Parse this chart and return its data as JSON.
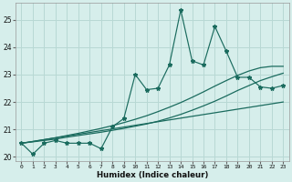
{
  "xlabel": "Humidex (Indice chaleur)",
  "ylabel": "",
  "background_color": "#d6eeeb",
  "grid_color": "#b8d8d4",
  "line_color": "#1a6b5e",
  "xlim": [
    -0.5,
    23.5
  ],
  "ylim": [
    19.85,
    25.6
  ],
  "yticks": [
    20,
    21,
    22,
    23,
    24,
    25
  ],
  "xticks": [
    0,
    1,
    2,
    3,
    4,
    5,
    6,
    7,
    8,
    9,
    10,
    11,
    12,
    13,
    14,
    15,
    16,
    17,
    18,
    19,
    20,
    21,
    22,
    23
  ],
  "series_jagged_x": [
    0,
    1,
    2,
    3,
    4,
    5,
    6,
    7,
    8,
    9,
    10,
    11,
    12,
    13,
    14,
    15,
    16,
    17,
    18,
    19,
    20,
    21,
    22,
    23
  ],
  "series_jagged_y": [
    20.5,
    20.1,
    20.5,
    20.6,
    20.5,
    20.5,
    20.5,
    20.3,
    21.1,
    21.4,
    23.0,
    22.45,
    22.5,
    23.35,
    25.35,
    23.5,
    23.35,
    24.75,
    23.85,
    22.9,
    22.9,
    22.55,
    22.5,
    22.6
  ],
  "series_line1_x": [
    0,
    1,
    2,
    3,
    4,
    5,
    6,
    7,
    8,
    9,
    10,
    11,
    12,
    13,
    14,
    15,
    16,
    17,
    18,
    19,
    20,
    21,
    22,
    23
  ],
  "series_line1_y": [
    20.5,
    20.55,
    20.6,
    20.65,
    20.72,
    20.78,
    20.84,
    20.9,
    20.97,
    21.04,
    21.12,
    21.2,
    21.3,
    21.42,
    21.55,
    21.7,
    21.86,
    22.03,
    22.22,
    22.42,
    22.6,
    22.78,
    22.92,
    23.05
  ],
  "series_line2_x": [
    0,
    1,
    2,
    3,
    4,
    5,
    6,
    7,
    8,
    9,
    10,
    11,
    12,
    13,
    14,
    15,
    16,
    17,
    18,
    19,
    20,
    21,
    22,
    23
  ],
  "series_line2_y": [
    20.5,
    20.56,
    20.63,
    20.7,
    20.78,
    20.86,
    20.95,
    21.04,
    21.14,
    21.25,
    21.37,
    21.5,
    21.65,
    21.81,
    21.98,
    22.17,
    22.37,
    22.58,
    22.78,
    22.97,
    23.13,
    23.25,
    23.3,
    23.3
  ],
  "series_line3_x": [
    0,
    23
  ],
  "series_line3_y": [
    20.5,
    22.0
  ]
}
